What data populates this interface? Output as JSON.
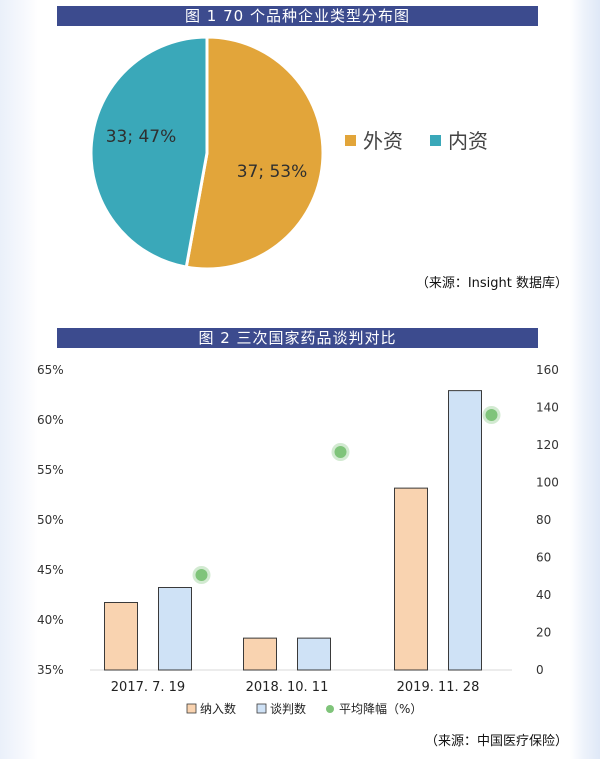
{
  "colors": {
    "title_bar": "#3c4b8e",
    "foreign": "#e2a53a",
    "domestic": "#3aa8b9",
    "included_fill": "#f9d3b0",
    "included_stroke": "#3a3a3a",
    "negotiated_fill": "#cfe2f6",
    "negotiated_stroke": "#3a3a3a",
    "avg_drop": "#7fc47a"
  },
  "figure1": {
    "title": "图 1   70 个品种企业类型分布图",
    "source": "（来源：Insight 数据库）"
  },
  "figure2": {
    "title": "图 2   三次国家药品谈判对比",
    "source": "（来源：中国医疗保险）"
  },
  "chart_data": [
    {
      "type": "pie",
      "title": "图 1   70 个品种企业类型分布图",
      "slices": [
        {
          "name": "外资",
          "value": 37,
          "percent": 53,
          "label": "37; 53%"
        },
        {
          "name": "内资",
          "value": 33,
          "percent": 47,
          "label": "33; 47%"
        }
      ],
      "legend": [
        "外资",
        "内资"
      ],
      "legend_position": "right"
    },
    {
      "type": "bar",
      "title": "图 2   三次国家药品谈判对比",
      "categories": [
        "2017. 7. 19",
        "2018. 10. 11",
        "2019. 11. 28"
      ],
      "series": [
        {
          "name": "纳入数",
          "type": "bar",
          "axis": "right",
          "values": [
            36,
            17,
            97
          ]
        },
        {
          "name": "谈判数",
          "type": "bar",
          "axis": "right",
          "values": [
            44,
            17,
            149
          ]
        },
        {
          "name": "平均降幅（%）",
          "type": "scatter",
          "axis": "left",
          "values": [
            44.5,
            56.8,
            60.5
          ]
        }
      ],
      "y_left": {
        "min": 35,
        "max": 65,
        "ticks": [
          "35%",
          "40%",
          "45%",
          "50%",
          "55%",
          "60%",
          "65%"
        ]
      },
      "y_right": {
        "min": 0,
        "max": 160,
        "ticks": [
          "0",
          "20",
          "40",
          "60",
          "80",
          "100",
          "120",
          "140",
          "160"
        ]
      },
      "legend": [
        "纳入数",
        "谈判数",
        "平均降幅（%）"
      ],
      "legend_position": "bottom",
      "grid": false
    }
  ]
}
